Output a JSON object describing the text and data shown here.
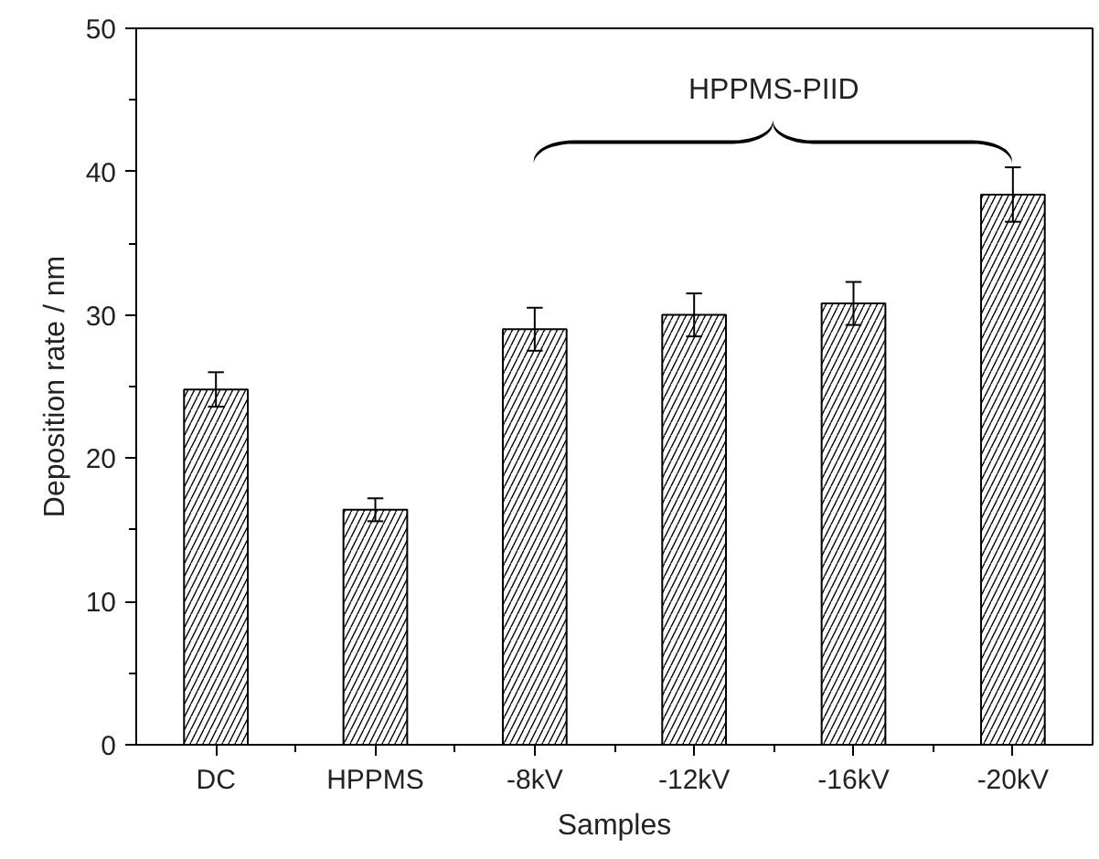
{
  "chart_data": {
    "type": "bar",
    "xlabel": "Samples",
    "ylabel": "Deposition rate / nm",
    "categories": [
      "DC",
      "HPPMS",
      "-8kV",
      "-12kV",
      "-16kV",
      "-20kV"
    ],
    "values": [
      24.8,
      16.4,
      29.0,
      30.0,
      30.8,
      38.4
    ],
    "errors": [
      1.2,
      0.8,
      1.5,
      1.5,
      1.5,
      1.9
    ],
    "color": "#000000",
    "ylim": [
      0,
      50
    ],
    "yticks": [
      0,
      10,
      20,
      30,
      40,
      50
    ],
    "annotations": [
      "HPPMS-PIID"
    ],
    "grid": false
  }
}
